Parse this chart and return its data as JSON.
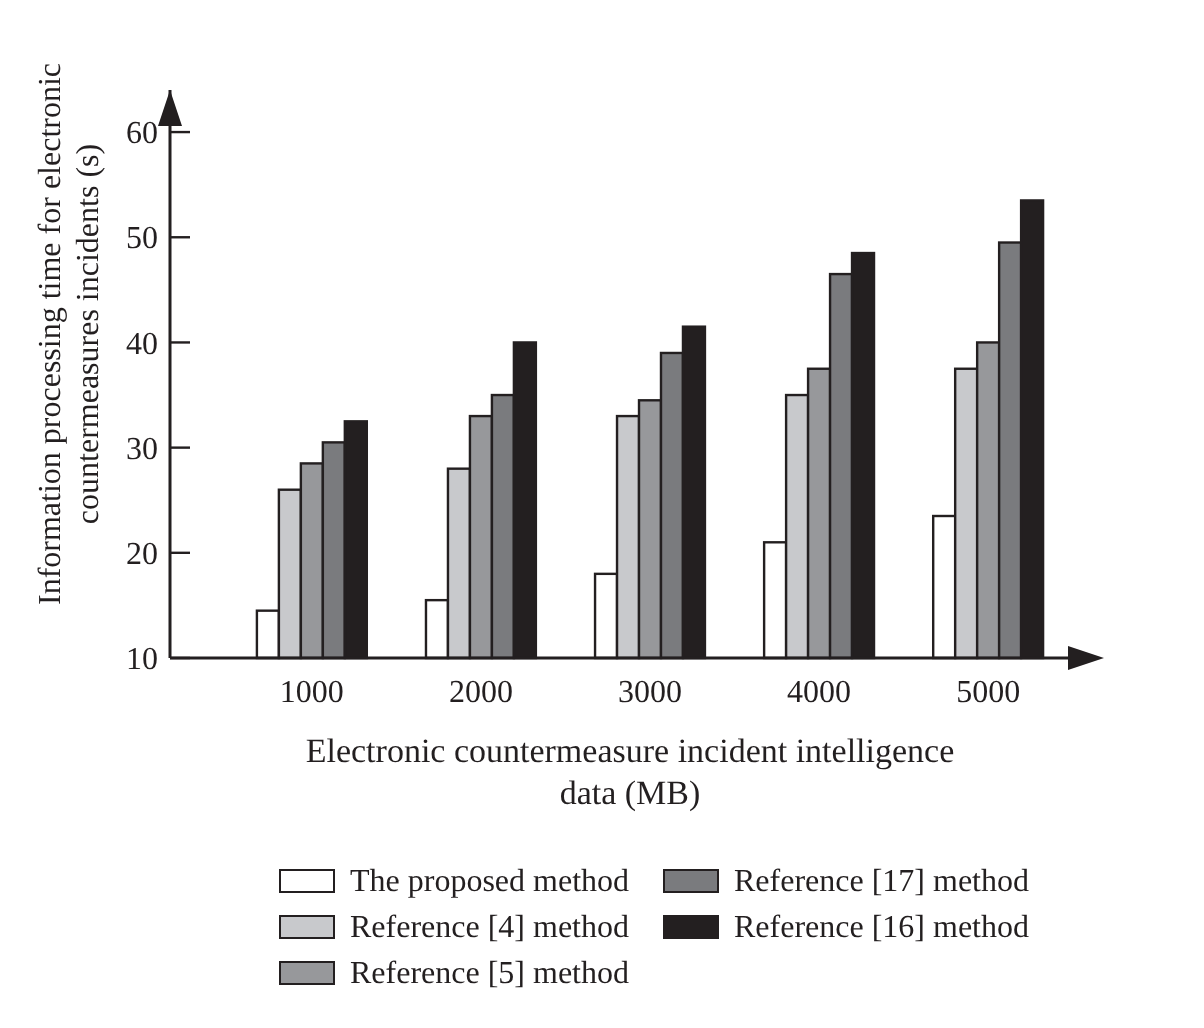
{
  "chart_data": {
    "type": "bar",
    "xlabel": "Electronic countermeasure incident intelligence data (MB)",
    "ylabel": "Information processing time for electronic countermeasures incidents (s)",
    "categories": [
      "1000",
      "2000",
      "3000",
      "4000",
      "5000"
    ],
    "series": [
      {
        "name": "The proposed method",
        "color": "#ffffff",
        "values": [
          14.5,
          15.5,
          18,
          21,
          23.5
        ]
      },
      {
        "name": "Reference [4] method",
        "color": "#c8c9cc",
        "values": [
          26,
          28,
          33,
          35,
          37.5
        ]
      },
      {
        "name": "Reference [5] method",
        "color": "#97989b",
        "values": [
          28.5,
          33,
          34.5,
          37.5,
          40
        ]
      },
      {
        "name": "Reference [17] method",
        "color": "#7a7b7e",
        "values": [
          30.5,
          35,
          39,
          46.5,
          49.5
        ]
      },
      {
        "name": "Reference [16] method",
        "color": "#231f20",
        "values": [
          32.5,
          40,
          41.5,
          48.5,
          53.5
        ]
      }
    ],
    "ylim": [
      10,
      64
    ],
    "yticks": [
      10,
      20,
      30,
      40,
      50,
      60
    ],
    "grid": false,
    "legend": "bottom"
  }
}
